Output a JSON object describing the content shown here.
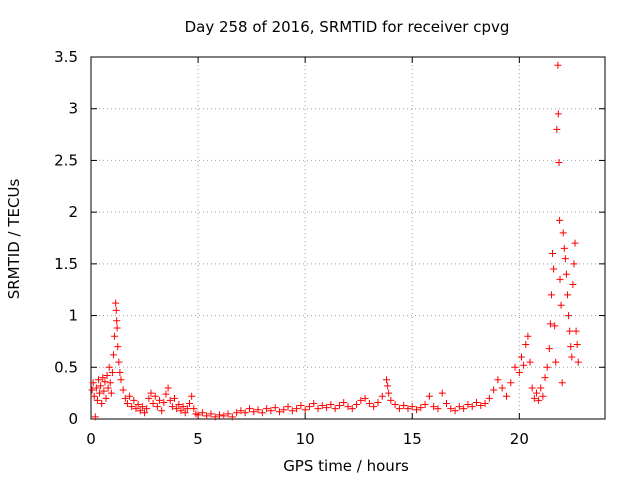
{
  "chart_data": {
    "type": "scatter",
    "title": "Day 258 of 2016, SRMTID for receiver cpvg",
    "xlabel": "GPS time / hours",
    "ylabel": "SRMTID / TECUs",
    "xlim": [
      0,
      24
    ],
    "ylim": [
      0,
      3.5
    ],
    "xticks": [
      0,
      5,
      10,
      15,
      20
    ],
    "xtick_labels": [
      "0",
      "5",
      "10",
      "15",
      "20"
    ],
    "yticks": [
      0,
      0.5,
      1,
      1.5,
      2,
      2.5,
      3,
      3.5
    ],
    "ytick_labels": [
      "0",
      "0.5",
      "1",
      "1.5",
      "2",
      "2.5",
      "3",
      "3.5"
    ],
    "grid": true,
    "marker": "+",
    "color": "#ff0000",
    "series": [
      {
        "name": "SRMTID",
        "points": [
          [
            0.05,
            0.28
          ],
          [
            0.1,
            0.35
          ],
          [
            0.15,
            0.22
          ],
          [
            0.2,
            0.02
          ],
          [
            0.25,
            0.3
          ],
          [
            0.3,
            0.18
          ],
          [
            0.35,
            0.38
          ],
          [
            0.4,
            0.25
          ],
          [
            0.45,
            0.32
          ],
          [
            0.5,
            0.15
          ],
          [
            0.55,
            0.4
          ],
          [
            0.6,
            0.27
          ],
          [
            0.65,
            0.36
          ],
          [
            0.7,
            0.2
          ],
          [
            0.75,
            0.42
          ],
          [
            0.8,
            0.3
          ],
          [
            0.85,
            0.5
          ],
          [
            0.9,
            0.35
          ],
          [
            0.95,
            0.25
          ],
          [
            1.0,
            0.45
          ],
          [
            1.05,
            0.62
          ],
          [
            1.1,
            0.8
          ],
          [
            1.15,
            1.12
          ],
          [
            1.18,
            1.05
          ],
          [
            1.2,
            0.95
          ],
          [
            1.22,
            0.88
          ],
          [
            1.25,
            0.7
          ],
          [
            1.3,
            0.55
          ],
          [
            1.35,
            0.45
          ],
          [
            1.4,
            0.38
          ],
          [
            1.5,
            0.28
          ],
          [
            1.6,
            0.2
          ],
          [
            1.7,
            0.15
          ],
          [
            1.8,
            0.22
          ],
          [
            1.9,
            0.12
          ],
          [
            2.0,
            0.18
          ],
          [
            2.1,
            0.1
          ],
          [
            2.2,
            0.14
          ],
          [
            2.3,
            0.08
          ],
          [
            2.4,
            0.12
          ],
          [
            2.5,
            0.06
          ],
          [
            2.6,
            0.1
          ],
          [
            2.7,
            0.2
          ],
          [
            2.8,
            0.25
          ],
          [
            2.9,
            0.15
          ],
          [
            3.0,
            0.22
          ],
          [
            3.1,
            0.12
          ],
          [
            3.2,
            0.18
          ],
          [
            3.3,
            0.08
          ],
          [
            3.4,
            0.16
          ],
          [
            3.5,
            0.24
          ],
          [
            3.6,
            0.3
          ],
          [
            3.7,
            0.18
          ],
          [
            3.8,
            0.12
          ],
          [
            3.9,
            0.2
          ],
          [
            4.0,
            0.1
          ],
          [
            4.1,
            0.14
          ],
          [
            4.2,
            0.08
          ],
          [
            4.3,
            0.12
          ],
          [
            4.4,
            0.06
          ],
          [
            4.5,
            0.1
          ],
          [
            4.6,
            0.15
          ],
          [
            4.7,
            0.22
          ],
          [
            4.8,
            0.1
          ],
          [
            4.9,
            0.05
          ],
          [
            5.0,
            0.04
          ],
          [
            5.2,
            0.06
          ],
          [
            5.4,
            0.03
          ],
          [
            5.6,
            0.05
          ],
          [
            5.8,
            0.02
          ],
          [
            6.0,
            0.04
          ],
          [
            6.2,
            0.03
          ],
          [
            6.4,
            0.05
          ],
          [
            6.6,
            0.02
          ],
          [
            6.8,
            0.06
          ],
          [
            7.0,
            0.08
          ],
          [
            7.2,
            0.06
          ],
          [
            7.4,
            0.1
          ],
          [
            7.6,
            0.07
          ],
          [
            7.8,
            0.09
          ],
          [
            8.0,
            0.06
          ],
          [
            8.2,
            0.1
          ],
          [
            8.4,
            0.08
          ],
          [
            8.6,
            0.11
          ],
          [
            8.8,
            0.07
          ],
          [
            9.0,
            0.09
          ],
          [
            9.2,
            0.12
          ],
          [
            9.4,
            0.08
          ],
          [
            9.6,
            0.1
          ],
          [
            9.8,
            0.13
          ],
          [
            10.0,
            0.09
          ],
          [
            10.2,
            0.12
          ],
          [
            10.4,
            0.15
          ],
          [
            10.6,
            0.1
          ],
          [
            10.8,
            0.13
          ],
          [
            11.0,
            0.11
          ],
          [
            11.2,
            0.14
          ],
          [
            11.4,
            0.1
          ],
          [
            11.6,
            0.13
          ],
          [
            11.8,
            0.16
          ],
          [
            12.0,
            0.12
          ],
          [
            12.2,
            0.1
          ],
          [
            12.4,
            0.14
          ],
          [
            12.6,
            0.18
          ],
          [
            12.8,
            0.2
          ],
          [
            13.0,
            0.15
          ],
          [
            13.2,
            0.12
          ],
          [
            13.4,
            0.16
          ],
          [
            13.6,
            0.22
          ],
          [
            13.8,
            0.38
          ],
          [
            13.85,
            0.32
          ],
          [
            13.9,
            0.25
          ],
          [
            14.0,
            0.18
          ],
          [
            14.2,
            0.14
          ],
          [
            14.4,
            0.1
          ],
          [
            14.6,
            0.13
          ],
          [
            14.8,
            0.1
          ],
          [
            15.0,
            0.12
          ],
          [
            15.2,
            0.09
          ],
          [
            15.4,
            0.11
          ],
          [
            15.6,
            0.14
          ],
          [
            15.8,
            0.22
          ],
          [
            16.0,
            0.12
          ],
          [
            16.2,
            0.1
          ],
          [
            16.4,
            0.25
          ],
          [
            16.6,
            0.15
          ],
          [
            16.8,
            0.1
          ],
          [
            17.0,
            0.08
          ],
          [
            17.2,
            0.12
          ],
          [
            17.4,
            0.1
          ],
          [
            17.6,
            0.14
          ],
          [
            17.8,
            0.12
          ],
          [
            18.0,
            0.16
          ],
          [
            18.2,
            0.13
          ],
          [
            18.4,
            0.15
          ],
          [
            18.6,
            0.2
          ],
          [
            18.8,
            0.28
          ],
          [
            19.0,
            0.38
          ],
          [
            19.2,
            0.3
          ],
          [
            19.4,
            0.22
          ],
          [
            19.6,
            0.35
          ],
          [
            19.8,
            0.5
          ],
          [
            20.0,
            0.45
          ],
          [
            20.1,
            0.6
          ],
          [
            20.2,
            0.52
          ],
          [
            20.3,
            0.72
          ],
          [
            20.4,
            0.8
          ],
          [
            20.5,
            0.55
          ],
          [
            20.6,
            0.3
          ],
          [
            20.7,
            0.2
          ],
          [
            20.8,
            0.25
          ],
          [
            20.9,
            0.18
          ],
          [
            21.0,
            0.3
          ],
          [
            21.1,
            0.22
          ],
          [
            21.2,
            0.4
          ],
          [
            21.3,
            0.5
          ],
          [
            21.4,
            0.68
          ],
          [
            21.45,
            0.92
          ],
          [
            21.5,
            1.2
          ],
          [
            21.55,
            1.6
          ],
          [
            21.6,
            1.45
          ],
          [
            21.65,
            0.9
          ],
          [
            21.7,
            0.55
          ],
          [
            21.75,
            2.8
          ],
          [
            21.8,
            3.42
          ],
          [
            21.82,
            2.95
          ],
          [
            21.85,
            2.48
          ],
          [
            21.88,
            1.92
          ],
          [
            21.9,
            1.35
          ],
          [
            21.95,
            1.1
          ],
          [
            22.0,
            0.35
          ],
          [
            22.05,
            1.8
          ],
          [
            22.1,
            1.65
          ],
          [
            22.15,
            1.55
          ],
          [
            22.2,
            1.4
          ],
          [
            22.25,
            1.2
          ],
          [
            22.3,
            1.0
          ],
          [
            22.35,
            0.85
          ],
          [
            22.4,
            0.7
          ],
          [
            22.45,
            0.6
          ],
          [
            22.5,
            1.3
          ],
          [
            22.55,
            1.5
          ],
          [
            22.6,
            1.7
          ],
          [
            22.65,
            0.85
          ],
          [
            22.7,
            0.72
          ],
          [
            22.75,
            0.55
          ]
        ]
      }
    ]
  }
}
